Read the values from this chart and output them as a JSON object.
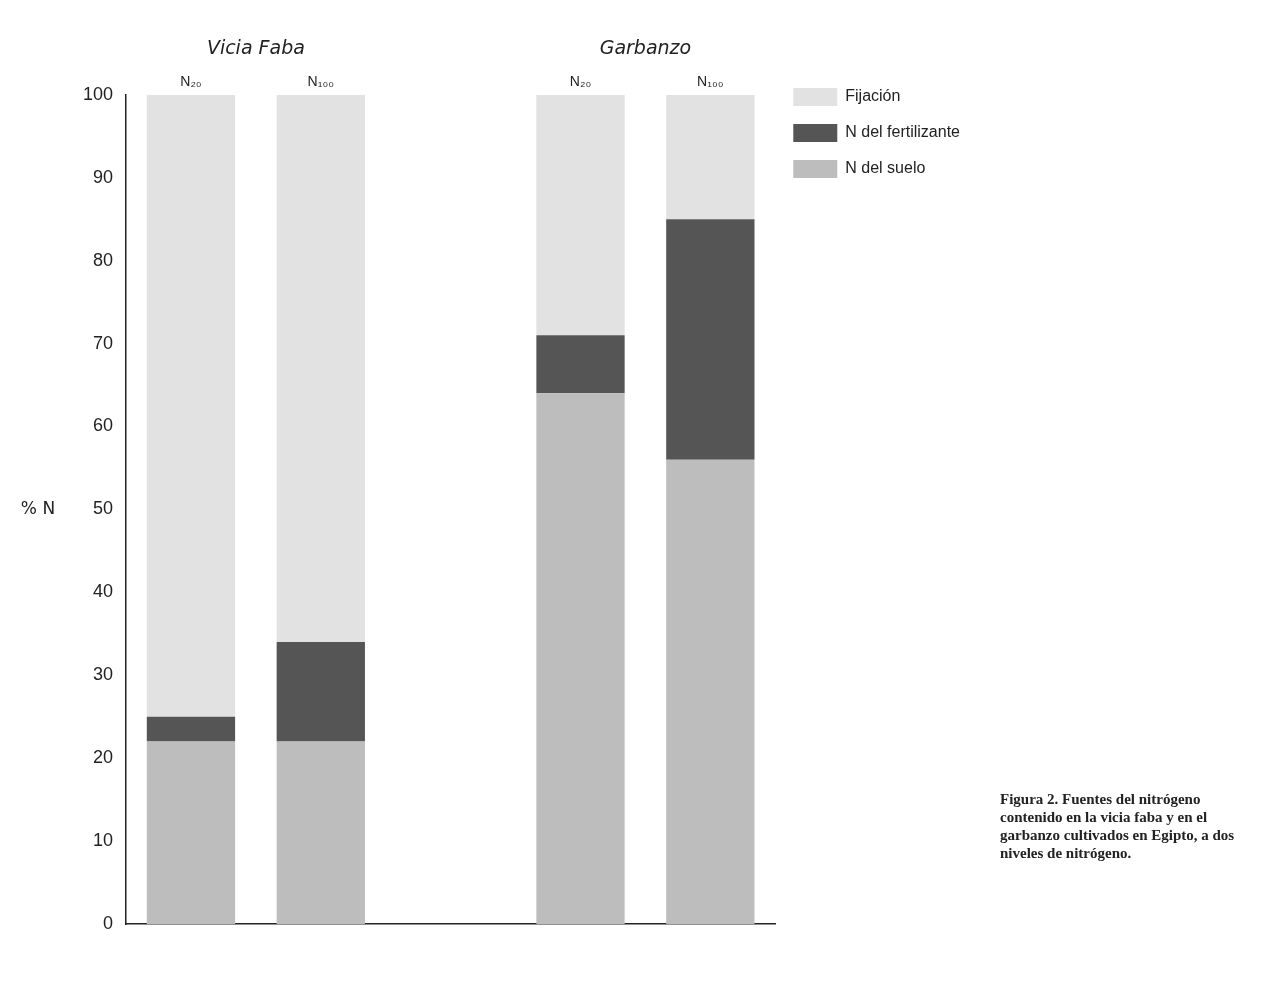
{
  "chart_data": {
    "type": "bar",
    "stacked": true,
    "ylabel": "% N",
    "categories": [
      "N₂₀",
      "N₁₀₀",
      null,
      "N₂₀",
      "N₁₀₀"
    ],
    "series": [
      {
        "name": "N del suelo",
        "color": "#bdbdbd",
        "values": [
          22,
          22,
          null,
          64,
          56
        ]
      },
      {
        "name": "N del fertilizante",
        "color": "#555555",
        "values": [
          3,
          12,
          null,
          7,
          29
        ]
      },
      {
        "name": "Fijación",
        "color": "#e2e2e2",
        "values": [
          75,
          66,
          null,
          29,
          15
        ]
      }
    ],
    "ylim": [
      0,
      100
    ],
    "yticks": [
      0,
      10,
      20,
      30,
      40,
      50,
      60,
      70,
      80,
      90,
      100
    ],
    "grid": false,
    "legend": "right",
    "annotations": [
      "Vicia Faba",
      "Garbanzo",
      "Figura 2. Fuentes del nitrógeno contenido en la vicia faba y en el garbanzo cultivados en Egipto, a dos niveles de nitrógeno."
    ]
  }
}
